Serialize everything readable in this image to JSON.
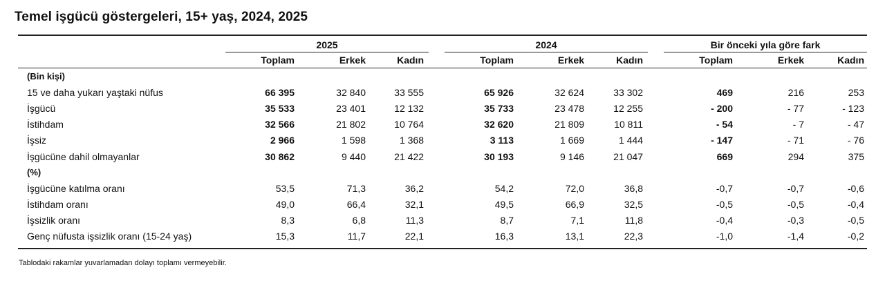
{
  "title": "Temel işgücü göstergeleri, 15+ yaş, 2024, 2025",
  "groups": [
    "2025",
    "2024",
    "Bir önceki yıla göre fark"
  ],
  "sub_headers": [
    "Toplam",
    "Erkek",
    "Kadın"
  ],
  "sections": [
    {
      "label": "(Bin kişi)",
      "rows": [
        {
          "label": "15 ve daha yukarı yaştaki nüfus",
          "values": [
            "66 395",
            "32 840",
            "33 555",
            "65 926",
            "32 624",
            "33 302",
            "469",
            "216",
            "253"
          ]
        },
        {
          "label": "İşgücü",
          "values": [
            "35 533",
            "23 401",
            "12 132",
            "35 733",
            "23 478",
            "12 255",
            "- 200",
            "- 77",
            "- 123"
          ]
        },
        {
          "label": "İstihdam",
          "values": [
            "32 566",
            "21 802",
            "10 764",
            "32 620",
            "21 809",
            "10 811",
            "- 54",
            "- 7",
            "- 47"
          ]
        },
        {
          "label": "İşsiz",
          "values": [
            "2 966",
            "1 598",
            "1 368",
            "3 113",
            "1 669",
            "1 444",
            "- 147",
            "- 71",
            "- 76"
          ]
        },
        {
          "label": "İşgücüne dahil olmayanlar",
          "values": [
            "30 862",
            "9 440",
            "21 422",
            "30 193",
            "9 146",
            "21 047",
            "669",
            "294",
            "375"
          ]
        }
      ]
    },
    {
      "label": "(%)",
      "rows": [
        {
          "label": "İşgücüne katılma oranı",
          "values": [
            "53,5",
            "71,3",
            "36,2",
            "54,2",
            "72,0",
            "36,8",
            "-0,7",
            "-0,7",
            "-0,6"
          ]
        },
        {
          "label": "İstihdam oranı",
          "values": [
            "49,0",
            "66,4",
            "32,1",
            "49,5",
            "66,9",
            "32,5",
            "-0,5",
            "-0,5",
            "-0,4"
          ]
        },
        {
          "label": "İşsizlik oranı",
          "values": [
            "8,3",
            "6,8",
            "11,3",
            "8,7",
            "7,1",
            "11,8",
            "-0,4",
            "-0,3",
            "-0,5"
          ]
        },
        {
          "label": "Genç nüfusta işsizlik oranı (15-24 yaş)",
          "values": [
            "15,3",
            "11,7",
            "22,1",
            "16,3",
            "13,1",
            "22,3",
            "-1,0",
            "-1,4",
            "-0,2"
          ]
        }
      ]
    }
  ],
  "footnote": "Tablodaki rakamlar yuvarlamadan dolayı toplamı vermeyebilir."
}
